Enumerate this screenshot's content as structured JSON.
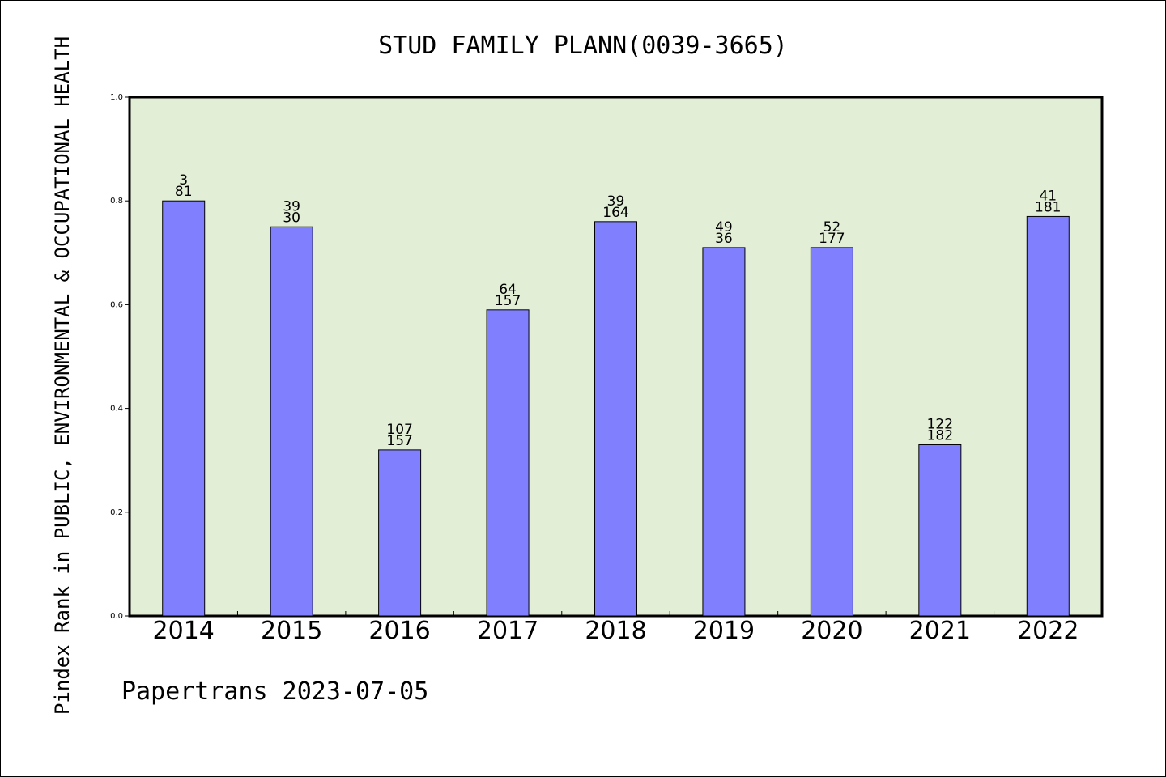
{
  "chart_data": {
    "type": "bar",
    "title": "STUD FAMILY PLANN(0039-3665)",
    "ylabel": "Pindex Rank in PUBLIC, ENVIRONMENTAL & OCCUPATIONAL HEALTH",
    "xlabel": "",
    "ylim": [
      0,
      1.0
    ],
    "yticks": [
      "0.0",
      "0.2",
      "0.4",
      "0.6",
      "0.8",
      "1.0"
    ],
    "categories": [
      "2014",
      "2015",
      "2016",
      "2017",
      "2018",
      "2019",
      "2020",
      "2021",
      "2022"
    ],
    "values": [
      0.8,
      0.75,
      0.32,
      0.59,
      0.76,
      0.71,
      0.71,
      0.33,
      0.77
    ],
    "labels_top": [
      "3",
      "39",
      "107",
      "64",
      "39",
      "49",
      "52",
      "122",
      "41"
    ],
    "labels_bottom": [
      "81",
      "30",
      "157",
      "157",
      "164",
      "36",
      "177",
      "182",
      "181"
    ],
    "grid": false,
    "colors": {
      "bar": "#8080ff",
      "plot_bg": "#e2efd6"
    }
  },
  "footer": "Papertrans 2023-07-05"
}
